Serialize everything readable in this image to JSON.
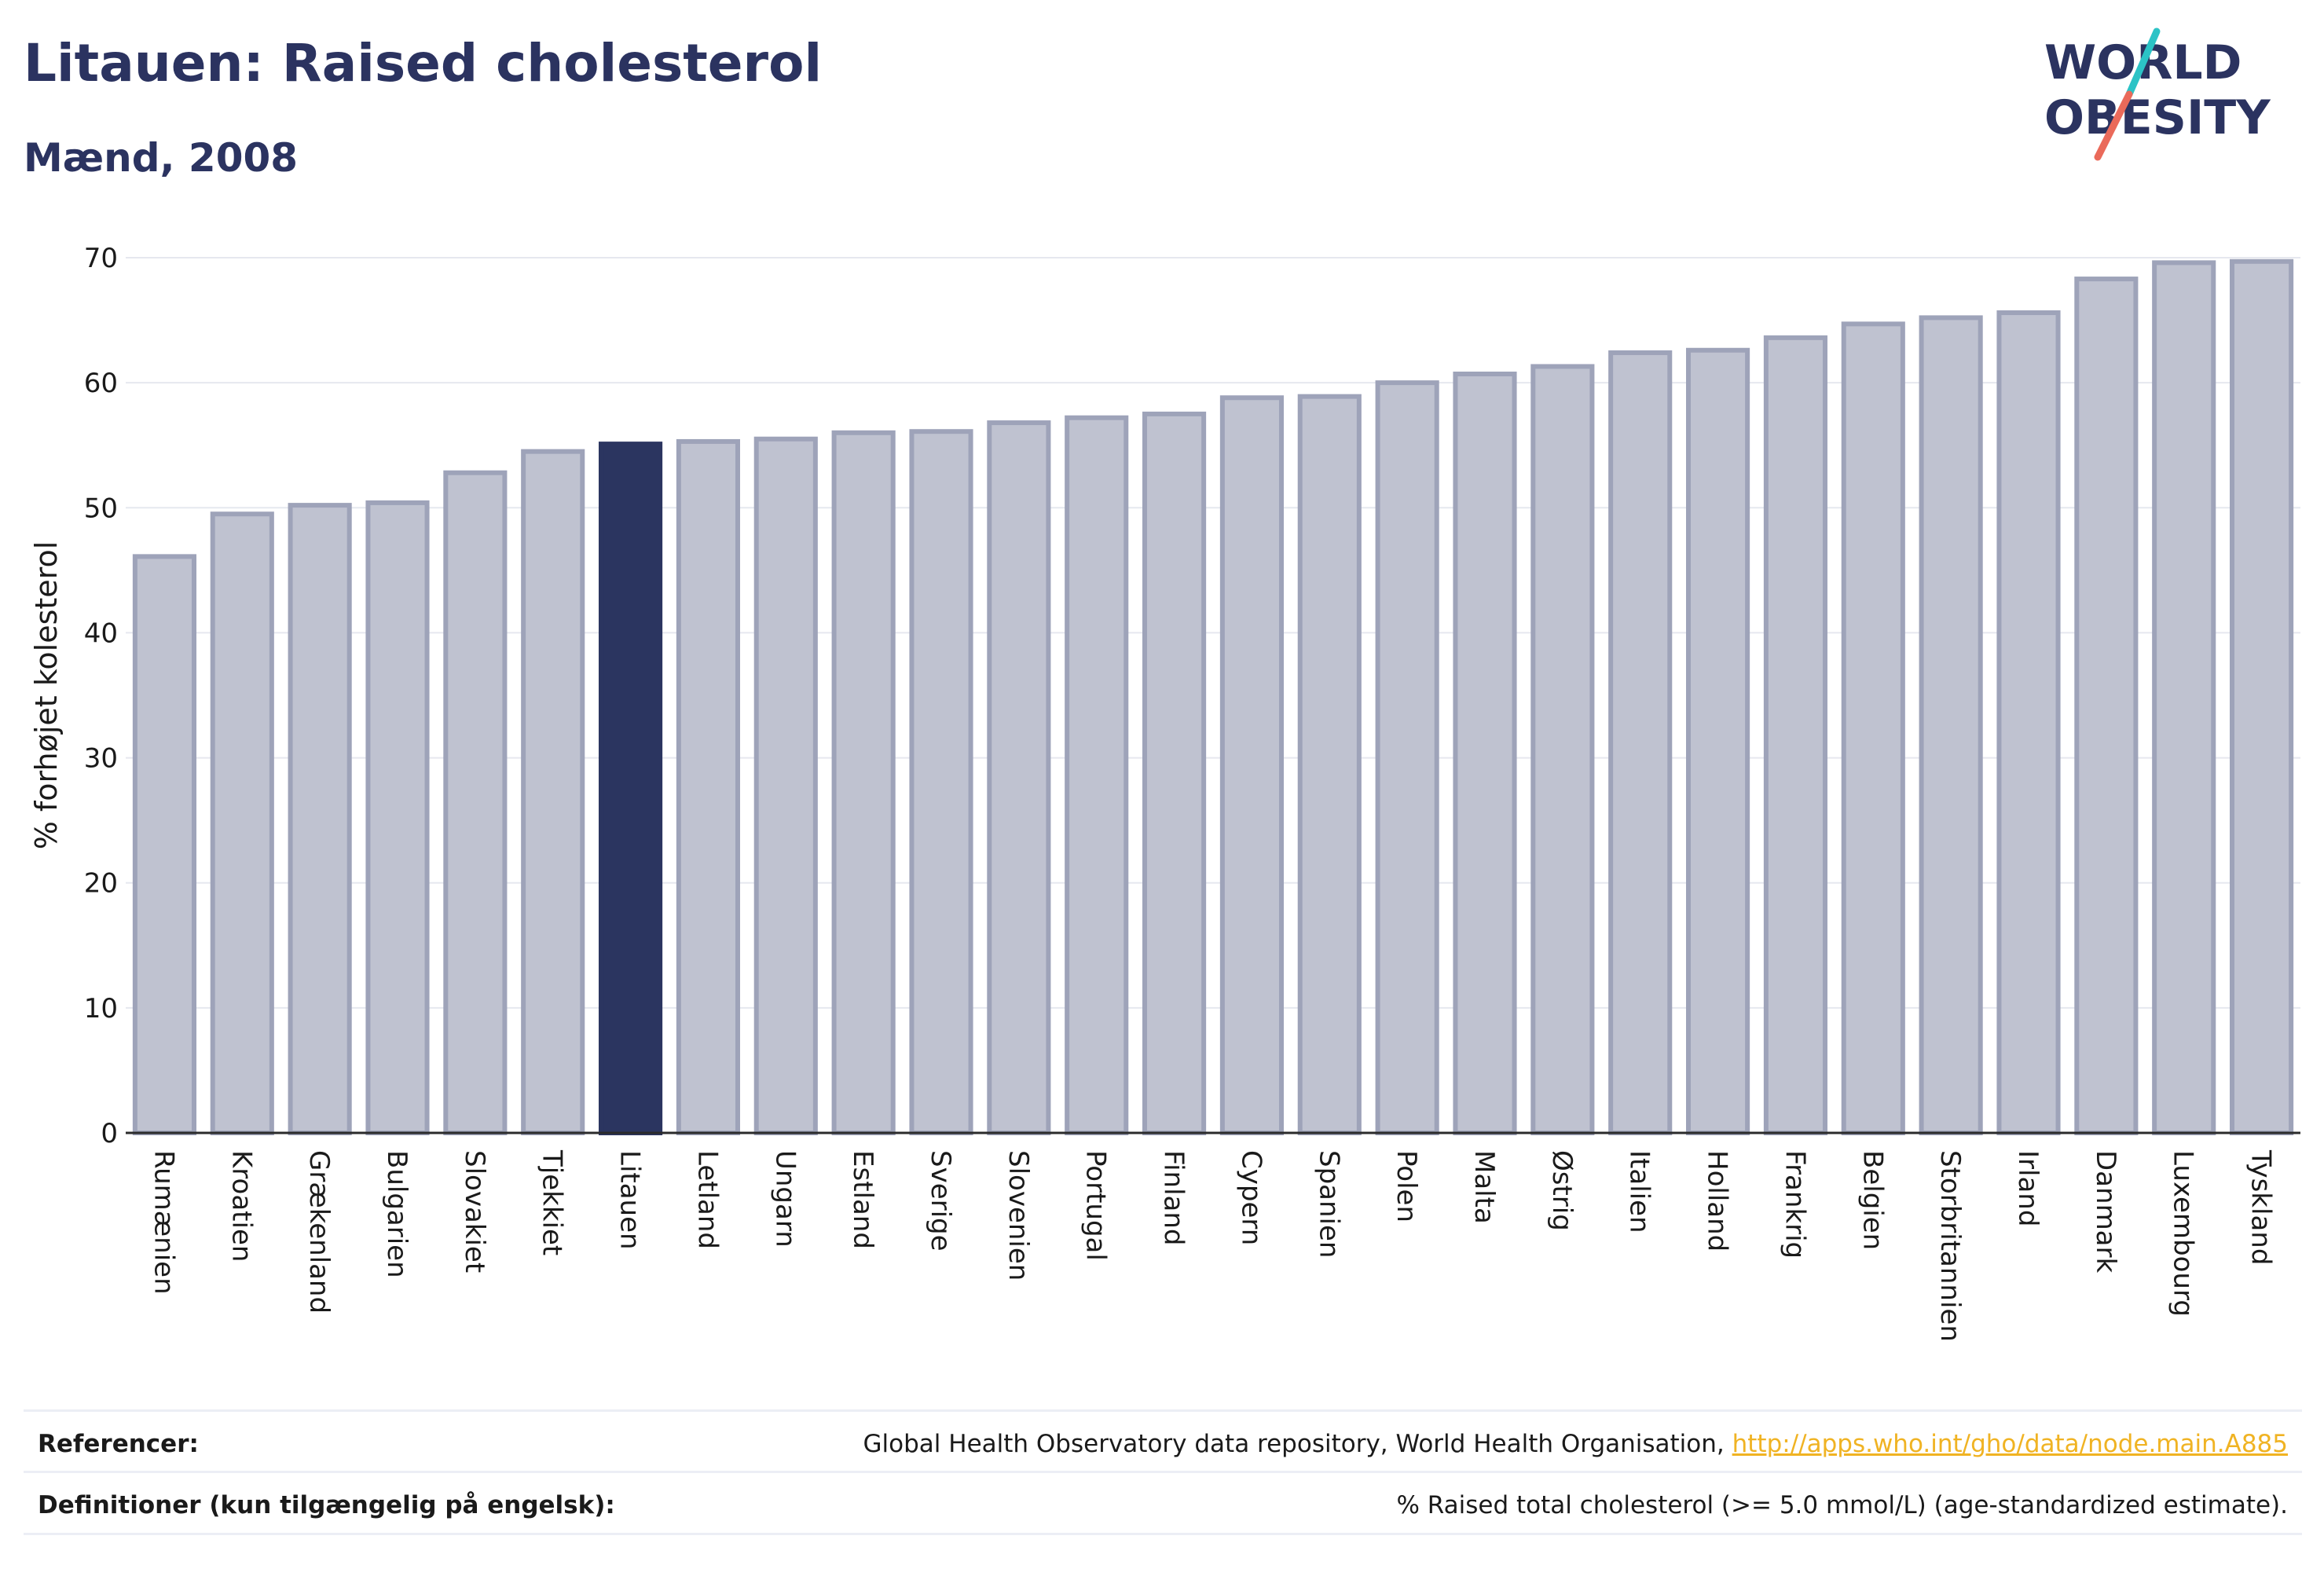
{
  "header": {
    "title": "Litauen: Raised cholesterol",
    "subtitle": "Mænd, 2008"
  },
  "logo": {
    "line1": "WORLD",
    "line2": "OBESITY",
    "accent_teal": "#2cc3c6",
    "accent_coral": "#ea6a5a"
  },
  "colors": {
    "bar_default": "#bfc2d0",
    "bar_default_stroke": "#9ea3b9",
    "bar_highlight": "#2b3560",
    "axis_text": "#1a1a1a",
    "grid": "#e6e8ef"
  },
  "chart_data": {
    "type": "bar",
    "ylabel": "% forhøjet kolesterol",
    "xlabel": "",
    "ylim": [
      0,
      70
    ],
    "yticks": [
      0,
      10,
      20,
      30,
      40,
      50,
      60,
      70
    ],
    "grid": true,
    "highlight": "Litauen",
    "categories": [
      "Rumænien",
      "Kroatien",
      "Grækenland",
      "Bulgarien",
      "Slovakiet",
      "Tjekkiet",
      "Litauen",
      "Letland",
      "Ungarn",
      "Estland",
      "Sverige",
      "Slovenien",
      "Portugal",
      "Finland",
      "Cypern",
      "Spanien",
      "Polen",
      "Malta",
      "Østrig",
      "Italien",
      "Holland",
      "Frankrig",
      "Belgien",
      "Storbritannien",
      "Irland",
      "Danmark",
      "Luxembourg",
      "Tyskland"
    ],
    "values": [
      46.1,
      49.5,
      50.2,
      50.4,
      52.8,
      54.5,
      55.1,
      55.3,
      55.5,
      56.0,
      56.1,
      56.8,
      57.2,
      57.5,
      58.8,
      58.9,
      60.0,
      60.7,
      61.3,
      62.4,
      62.6,
      63.6,
      64.7,
      65.2,
      65.6,
      68.3,
      69.6,
      69.7
    ]
  },
  "footer": {
    "references_label": "Referencer:",
    "references_text": "Global Health Observatory data repository, World Health Organisation, ",
    "references_link": "http://apps.who.int/gho/data/node.main.A885",
    "definitions_label": "Definitioner (kun tilgængelig på engelsk):",
    "definitions_text": "% Raised total cholesterol (>= 5.0 mmol/L) (age-standardized estimate)."
  }
}
